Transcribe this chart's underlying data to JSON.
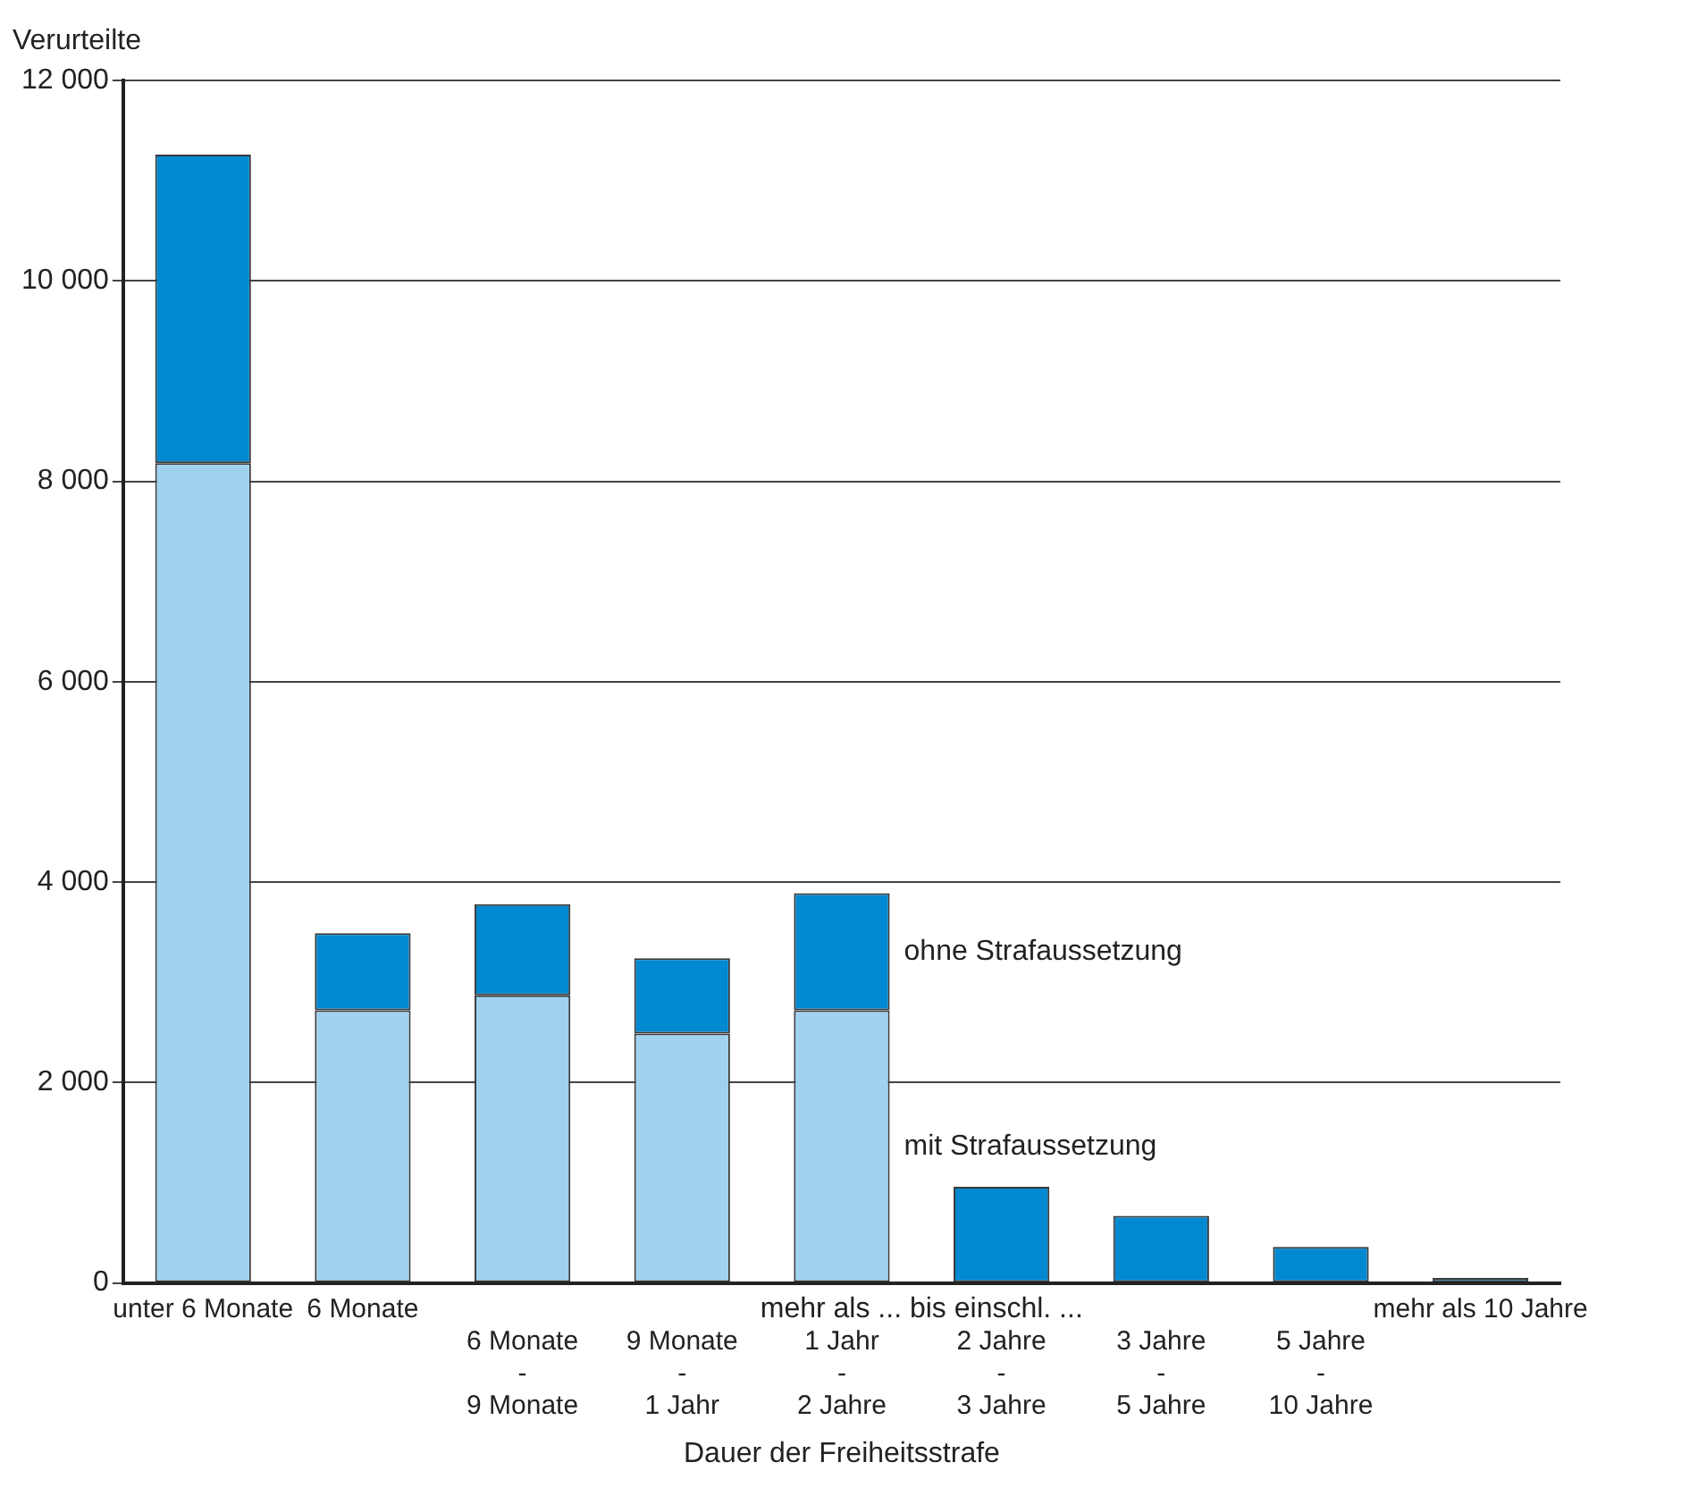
{
  "chart_data": {
    "type": "bar",
    "stacked": true,
    "ylabel": "Verurteilte",
    "xlabel": "Dauer der Freiheitsstrafe",
    "categories": [
      "unter 6 Monate",
      "6 Monate",
      "6 Monate\n-\n9 Monate",
      "9 Monate\n-\n1 Jahr",
      "1 Jahr\n-\n2 Jahre",
      "2 Jahre\n-\n3 Jahre",
      "3 Jahre\n-\n5 Jahre",
      "5 Jahre\n-\n10 Jahre",
      "mehr als 10 Jahre"
    ],
    "series": [
      {
        "name": "mit Strafaussetzung",
        "color": "#a0d2f0",
        "values": [
          8180,
          2720,
          2870,
          2490,
          2720,
          null,
          null,
          null,
          null
        ]
      },
      {
        "name": "ohne Strafaussetzung",
        "color": "#0088d0",
        "values": [
          3080,
          770,
          910,
          750,
          1170,
          960,
          670,
          360,
          50
        ]
      }
    ],
    "ylim": [
      0,
      12000
    ],
    "yticks": [
      0,
      {
        "value": 2000,
        "label": "2 000"
      },
      {
        "value": 4000,
        "label": "4 000"
      },
      {
        "value": 6000,
        "label": "6 000"
      },
      {
        "value": 8000,
        "label": "8 000"
      },
      {
        "value": 10000,
        "label": "10 000"
      },
      {
        "value": 12000,
        "label": "12 000"
      }
    ],
    "grid": "y",
    "legend": false,
    "annotations": [
      "mehr als ... bis einschl. ..."
    ]
  }
}
